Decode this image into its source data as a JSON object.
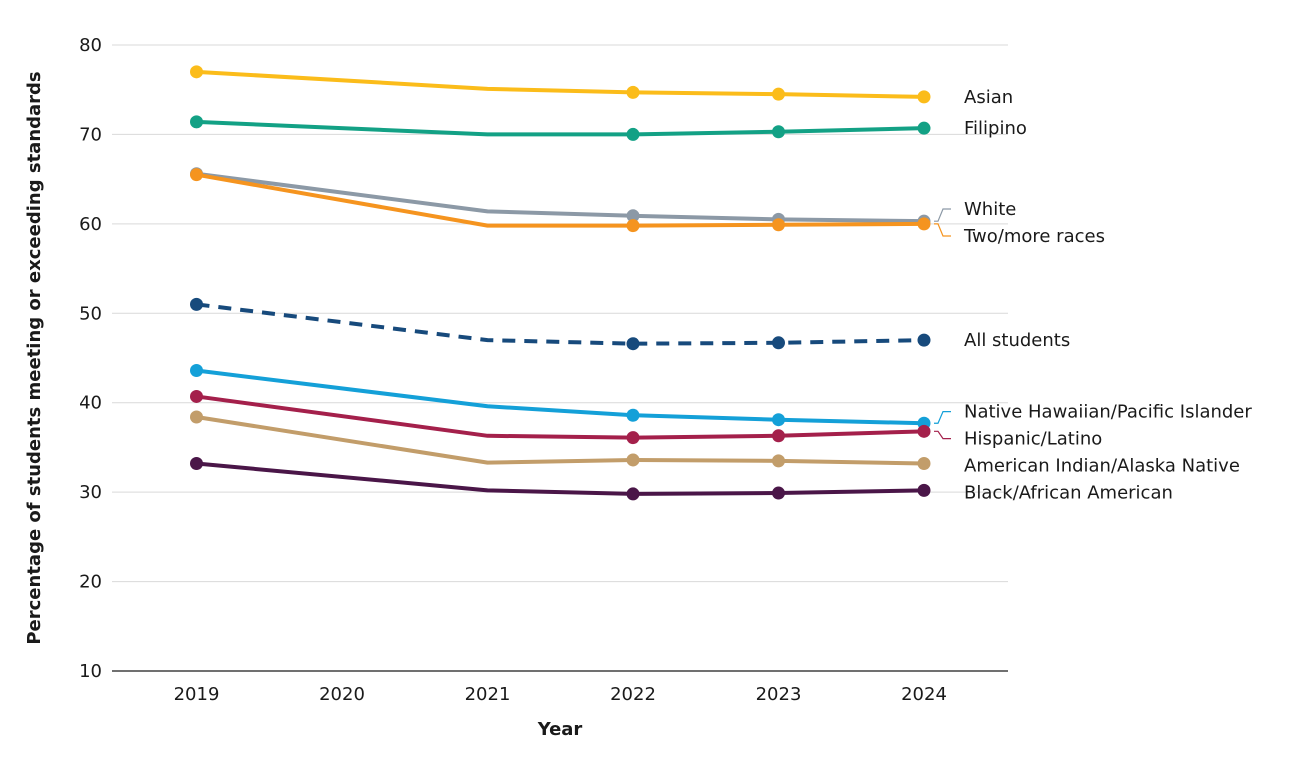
{
  "chart_data": {
    "type": "line",
    "title": "",
    "xlabel": "Year",
    "ylabel": "Percentage of students meeting or exceeding standards",
    "x_categories": [
      "2019",
      "2020",
      "2021",
      "2022",
      "2023",
      "2024"
    ],
    "ylim": [
      10,
      80
    ],
    "yticks": [
      10,
      20,
      30,
      40,
      50,
      60,
      70,
      80
    ],
    "grid": "horizontal",
    "series": [
      {
        "name": "Asian",
        "color": "#fbbc1a",
        "dash": false,
        "years": [
          2019,
          2021,
          2022,
          2023,
          2024
        ],
        "values": [
          77.0,
          75.1,
          74.7,
          74.5,
          74.2
        ],
        "marker_years": [
          2019,
          2022,
          2023,
          2024
        ]
      },
      {
        "name": "Filipino",
        "color": "#13a185",
        "dash": false,
        "years": [
          2019,
          2021,
          2022,
          2023,
          2024
        ],
        "values": [
          71.4,
          70.0,
          70.0,
          70.3,
          70.7
        ],
        "marker_years": [
          2019,
          2022,
          2023,
          2024
        ]
      },
      {
        "name": "White",
        "color": "#8c99a6",
        "dash": false,
        "years": [
          2019,
          2021,
          2022,
          2023,
          2024
        ],
        "values": [
          65.6,
          61.4,
          60.9,
          60.5,
          60.3
        ],
        "marker_years": [
          2019,
          2022,
          2023,
          2024
        ]
      },
      {
        "name": "Two/more races",
        "color": "#f5941f",
        "dash": false,
        "years": [
          2019,
          2021,
          2022,
          2023,
          2024
        ],
        "values": [
          65.5,
          59.8,
          59.8,
          59.9,
          60.0
        ],
        "marker_years": [
          2019,
          2022,
          2023,
          2024
        ]
      },
      {
        "name": "All students",
        "color": "#174a7c",
        "dash": true,
        "years": [
          2019,
          2021,
          2022,
          2023,
          2024
        ],
        "values": [
          51.0,
          47.0,
          46.6,
          46.7,
          47.0
        ],
        "marker_years": [
          2019,
          2022,
          2023,
          2024
        ]
      },
      {
        "name": "Native Hawaiian/Pacific Islander",
        "color": "#14a0d8",
        "dash": false,
        "years": [
          2019,
          2021,
          2022,
          2023,
          2024
        ],
        "values": [
          43.6,
          39.6,
          38.6,
          38.1,
          37.7
        ],
        "marker_years": [
          2019,
          2022,
          2023,
          2024
        ]
      },
      {
        "name": "Hispanic/Latino",
        "color": "#a4204b",
        "dash": false,
        "years": [
          2019,
          2021,
          2022,
          2023,
          2024
        ],
        "values": [
          40.7,
          36.3,
          36.1,
          36.3,
          36.8
        ],
        "marker_years": [
          2019,
          2022,
          2023,
          2024
        ]
      },
      {
        "name": "American Indian/Alaska Native",
        "color": "#c29d6a",
        "dash": false,
        "years": [
          2019,
          2021,
          2022,
          2023,
          2024
        ],
        "values": [
          38.4,
          33.3,
          33.6,
          33.5,
          33.2
        ],
        "marker_years": [
          2019,
          2022,
          2023,
          2024
        ]
      },
      {
        "name": "Black/African American",
        "color": "#4a1648",
        "dash": false,
        "years": [
          2019,
          2021,
          2022,
          2023,
          2024
        ],
        "values": [
          33.2,
          30.2,
          29.8,
          29.9,
          30.2
        ],
        "marker_years": [
          2019,
          2022,
          2023,
          2024
        ]
      }
    ]
  }
}
